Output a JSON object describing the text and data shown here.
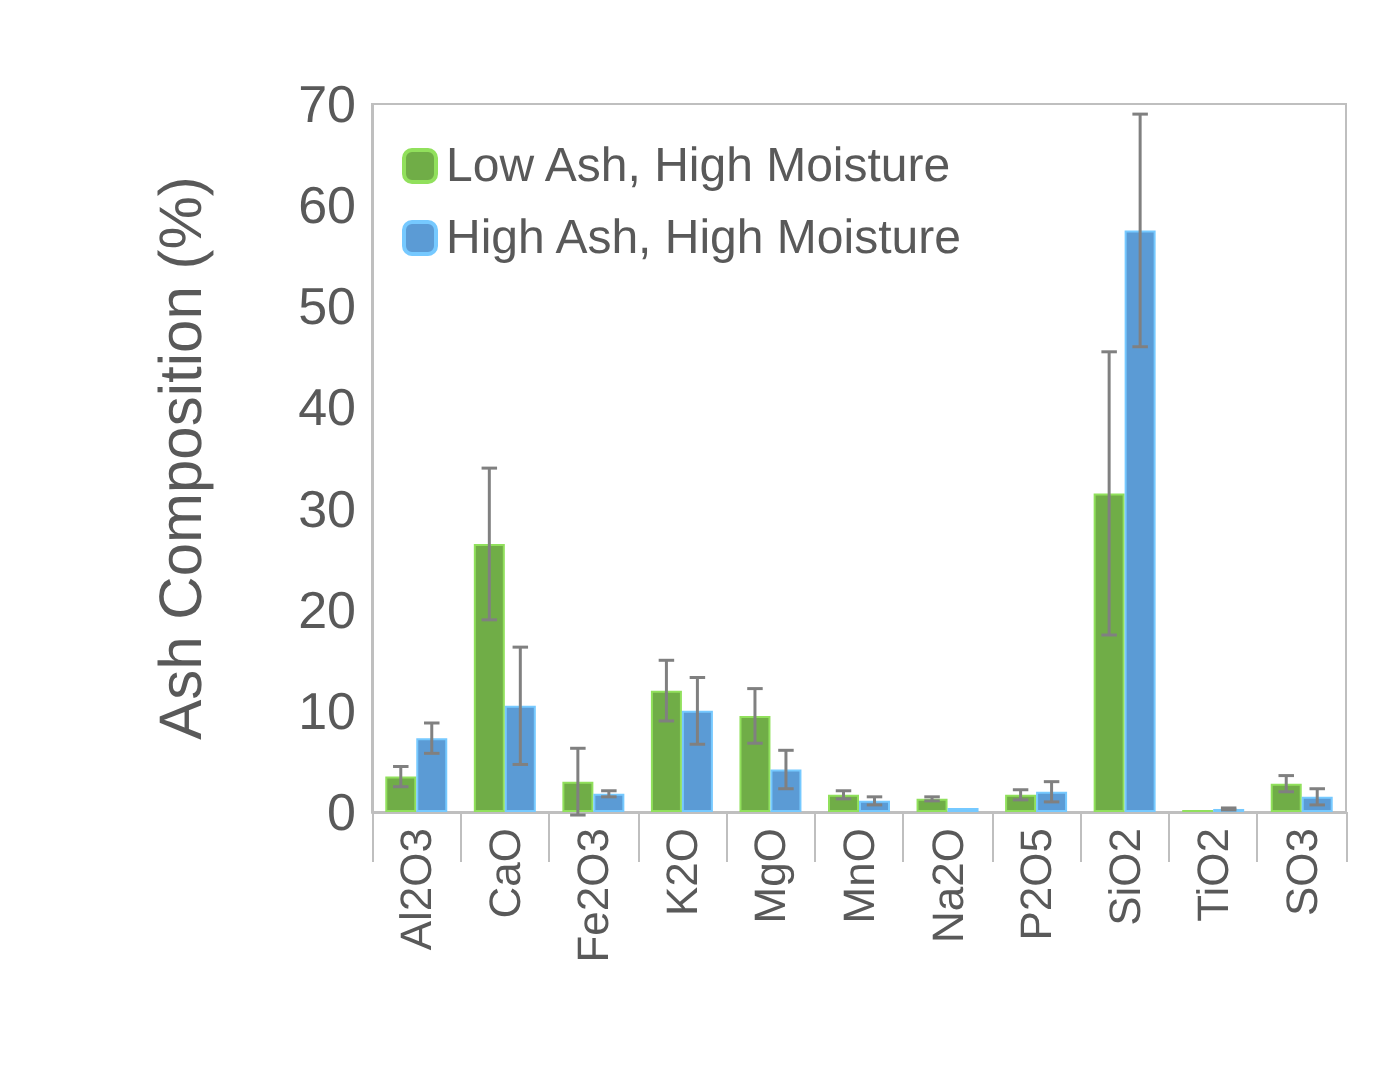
{
  "chart_data": {
    "type": "bar",
    "ylabel": "Ash Composition (%)",
    "categories": [
      "Al2O3",
      "CaO",
      "Fe2O3",
      "K2O",
      "MgO",
      "MnO",
      "Na2O",
      "P2O5",
      "SiO2",
      "TiO2",
      "SO3"
    ],
    "series": [
      {
        "name": "Low Ash, High Moisture",
        "color": "#70ad47",
        "values": [
          3.5,
          26.5,
          3,
          12,
          9.5,
          1.7,
          1.3,
          1.7,
          31.5,
          0.2,
          2.8
        ],
        "errors": [
          1,
          7.5,
          3.3,
          3,
          2.7,
          0.4,
          0.2,
          0.5,
          14,
          null,
          0.8
        ]
      },
      {
        "name": "High Ash, High Moisture",
        "color": "#5b9bd5",
        "values": [
          7.3,
          10.5,
          1.8,
          10,
          4.2,
          1.1,
          0.4,
          2,
          57.5,
          0.3,
          1.5
        ],
        "errors": [
          1.5,
          5.8,
          0.3,
          3.3,
          1.9,
          0.4,
          null,
          1,
          11.5,
          0.1,
          0.8
        ]
      }
    ],
    "ylim": [
      0,
      70
    ],
    "yticks": [
      0,
      10,
      20,
      30,
      40,
      50,
      60,
      70
    ],
    "grid": false,
    "legend": "top left"
  }
}
